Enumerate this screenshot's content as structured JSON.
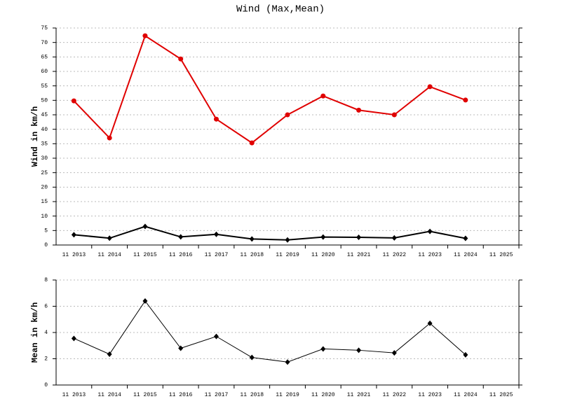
{
  "chart_data": [
    {
      "type": "line",
      "title": "Wind (Max,Mean)",
      "ylabel": "Wind in km/h",
      "categories": [
        "11 2013",
        "11 2014",
        "11 2015",
        "11 2016",
        "11 2017",
        "11 2018",
        "11 2019",
        "11 2020",
        "11 2021",
        "11 2022",
        "11 2023",
        "11 2024",
        "11 2025"
      ],
      "series": [
        {
          "color": "#e00000",
          "marker": "circle",
          "line_width": 2,
          "values": [
            49.8,
            37,
            72.3,
            64.3,
            43.5,
            35.3,
            45,
            51.5,
            46.6,
            45,
            54.7,
            50.1,
            null
          ]
        },
        {
          "color": "#000000",
          "marker": "diamond",
          "line_width": 2,
          "values": [
            3.55,
            2.35,
            6.4,
            2.8,
            3.7,
            2.1,
            1.75,
            2.75,
            2.65,
            2.45,
            4.7,
            2.3,
            null
          ]
        }
      ],
      "ylim": [
        0,
        75
      ],
      "yticks": [
        0,
        5,
        10,
        15,
        20,
        25,
        30,
        35,
        40,
        45,
        50,
        55,
        60,
        65,
        70,
        75
      ],
      "grid": true
    },
    {
      "type": "line",
      "ylabel": "Mean in km/h",
      "categories": [
        "11 2013",
        "11 2014",
        "11 2015",
        "11 2016",
        "11 2017",
        "11 2018",
        "11 2019",
        "11 2020",
        "11 2021",
        "11 2022",
        "11 2023",
        "11 2024",
        "11 2025"
      ],
      "series": [
        {
          "color": "#000000",
          "marker": "diamond",
          "line_width": 1,
          "values": [
            3.55,
            2.35,
            6.4,
            2.8,
            3.7,
            2.1,
            1.75,
            2.75,
            2.65,
            2.45,
            4.7,
            2.3,
            null
          ]
        }
      ],
      "ylim": [
        0,
        8
      ],
      "yticks": [
        0,
        2,
        4,
        6,
        8
      ],
      "grid": true
    }
  ]
}
